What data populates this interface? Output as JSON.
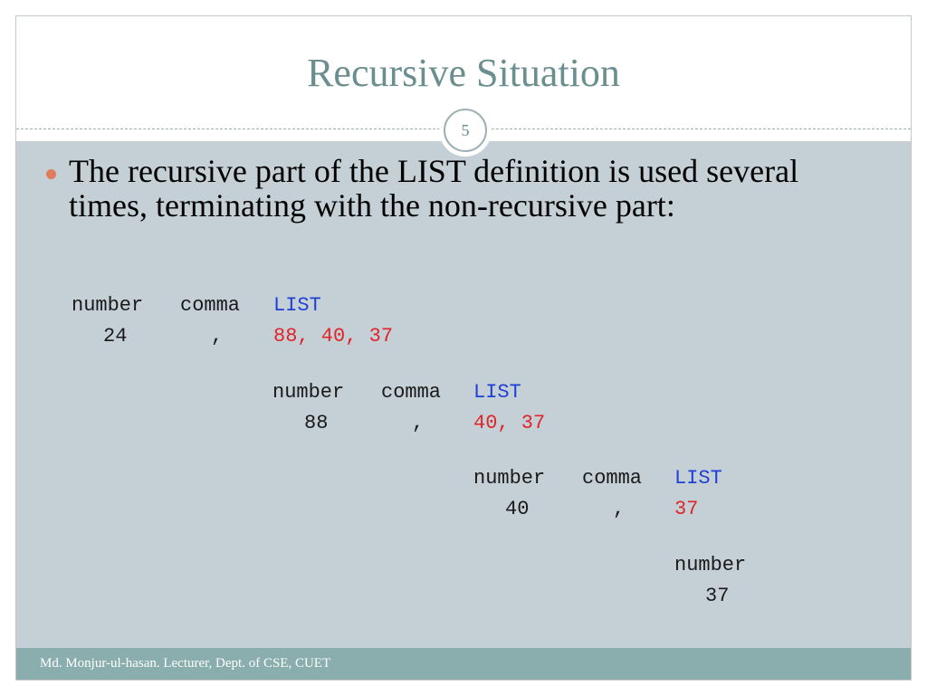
{
  "slide": {
    "title": "Recursive Situation",
    "slide_number": "5"
  },
  "bullet": {
    "text": "The recursive part of the LIST definition is used several times, terminating with the non-recursive part:"
  },
  "derivation": {
    "level1": {
      "number_label": "number",
      "comma_label": "comma",
      "list_label": "LIST",
      "number_value": "24",
      "comma_value": ",",
      "list_value": "88, 40, 37"
    },
    "level2": {
      "number_label": "number",
      "comma_label": "comma",
      "list_label": "LIST",
      "number_value": "88",
      "comma_value": ",",
      "list_value": "40, 37"
    },
    "level3": {
      "number_label": "number",
      "comma_label": "comma",
      "list_label": "LIST",
      "number_value": "40",
      "comma_value": ",",
      "list_value": "37"
    },
    "level4": {
      "number_label": "number",
      "number_value": "37"
    }
  },
  "footer": {
    "text": "Md. Monjur-ul-hasan. Lecturer, Dept. of CSE, CUET"
  },
  "colors": {
    "title": "#6b8e8f",
    "content_background": "#c4d0d6",
    "footer_background": "#8aadad",
    "bullet": "#e07b5c",
    "keyword_blue": "#1f3fd6",
    "value_red": "#e0242a"
  }
}
